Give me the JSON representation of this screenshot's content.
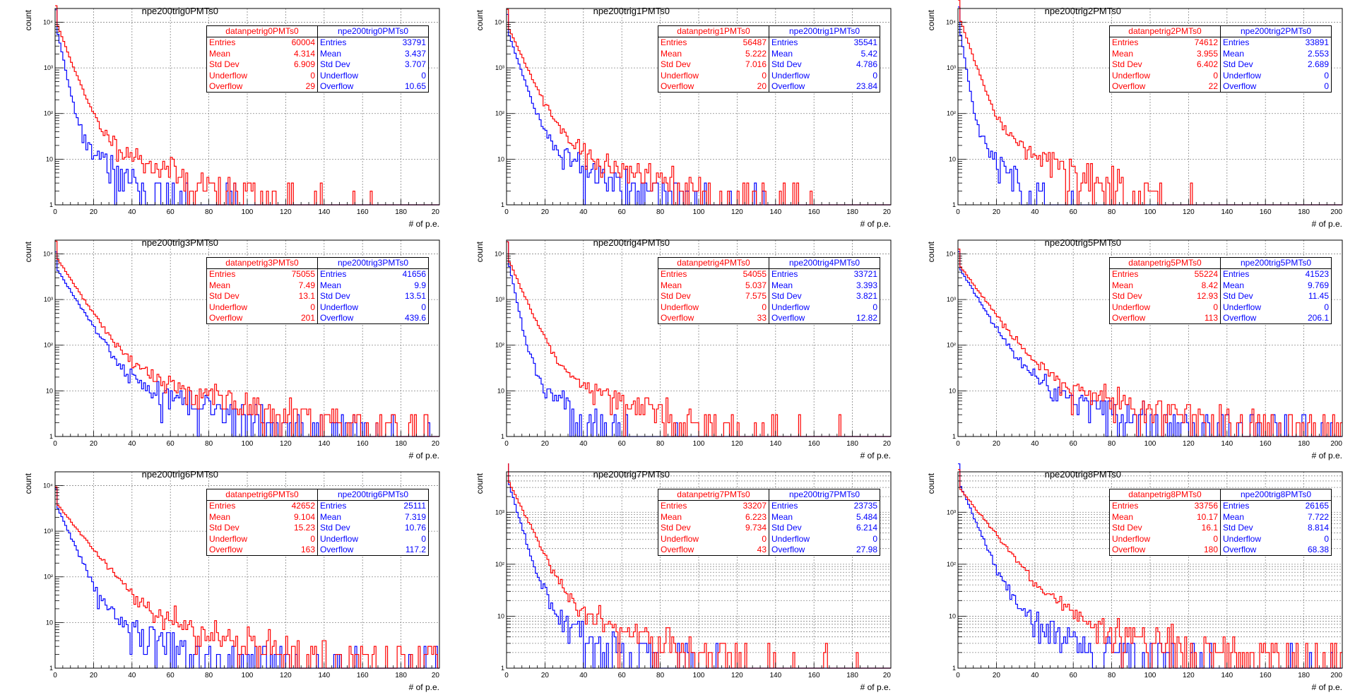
{
  "style": {
    "data_color": "#ff0000",
    "mc_color": "#0000ff"
  },
  "chart_data": [
    {
      "type": "histogram",
      "title": "npe200trig0PMTs0",
      "xlabel": "# of p.e.",
      "ylabel": "count",
      "xlim": [
        0,
        200
      ],
      "ylog": true,
      "ylim": [
        1,
        20000
      ],
      "grid": true,
      "xticks": [
        "0",
        "20",
        "40",
        "60",
        "80",
        "100",
        "120",
        "140",
        "160",
        "180",
        "20"
      ],
      "yticks": [
        "1",
        "10",
        "10²",
        "10³",
        "10⁴"
      ],
      "stats": [
        {
          "name": "datanpetrig0PMTs0",
          "color": "red",
          "Entries": "60004",
          "Mean": "4.314",
          "Std Dev": "6.909",
          "Underflow": "0",
          "Overflow": "29"
        },
        {
          "name": "npe200trig0PMTs0",
          "color": "blue",
          "Entries": "33791",
          "Mean": "3.437",
          "Std Dev": "3.707",
          "Underflow": "0",
          "Overflow": "10.65"
        }
      ]
    },
    {
      "type": "histogram",
      "title": "npe200trig1PMTs0",
      "xlabel": "# of p.e.",
      "ylabel": "count",
      "xlim": [
        0,
        200
      ],
      "ylog": true,
      "ylim": [
        1,
        20000
      ],
      "grid": true,
      "xticks": [
        "0",
        "20",
        "40",
        "60",
        "80",
        "100",
        "120",
        "140",
        "160",
        "180",
        "20"
      ],
      "yticks": [
        "1",
        "10",
        "10²",
        "10³",
        "10⁴"
      ],
      "stats": [
        {
          "name": "datanpetrig1PMTs0",
          "color": "red",
          "Entries": "56487",
          "Mean": "5.222",
          "Std Dev": "7.016",
          "Underflow": "0",
          "Overflow": "20"
        },
        {
          "name": "npe200trig1PMTs0",
          "color": "blue",
          "Entries": "35541",
          "Mean": "5.42",
          "Std Dev": "4.786",
          "Underflow": "0",
          "Overflow": "23.84"
        }
      ]
    },
    {
      "type": "histogram",
      "title": "npe200trig2PMTs0",
      "xlabel": "# of p.e.",
      "ylabel": "count",
      "xlim": [
        0,
        200
      ],
      "ylog": true,
      "ylim": [
        1,
        20000
      ],
      "grid": true,
      "xticks": [
        "0",
        "20",
        "40",
        "60",
        "80",
        "100",
        "120",
        "140",
        "160",
        "180",
        "200"
      ],
      "yticks": [
        "1",
        "10",
        "10²",
        "10³",
        "10⁴"
      ],
      "stats": [
        {
          "name": "datanpetrig2PMTs0",
          "color": "red",
          "Entries": "74612",
          "Mean": "3.955",
          "Std Dev": "6.402",
          "Underflow": "0",
          "Overflow": "22"
        },
        {
          "name": "npe200trig2PMTs0",
          "color": "blue",
          "Entries": "33891",
          "Mean": "2.553",
          "Std Dev": "2.689",
          "Underflow": "0",
          "Overflow": "0"
        }
      ]
    },
    {
      "type": "histogram",
      "title": "npe200trig3PMTs0",
      "xlabel": "# of p.e.",
      "ylabel": "count",
      "xlim": [
        0,
        200
      ],
      "ylog": true,
      "ylim": [
        1,
        20000
      ],
      "grid": true,
      "xticks": [
        "0",
        "20",
        "40",
        "60",
        "80",
        "100",
        "120",
        "140",
        "160",
        "180",
        "20"
      ],
      "yticks": [
        "1",
        "10",
        "10²",
        "10³",
        "10⁴"
      ],
      "stats": [
        {
          "name": "datanpetrig3PMTs0",
          "color": "red",
          "Entries": "75055",
          "Mean": "7.49",
          "Std Dev": "13.1",
          "Underflow": "0",
          "Overflow": "201"
        },
        {
          "name": "npe200trig3PMTs0",
          "color": "blue",
          "Entries": "41656",
          "Mean": "9.9",
          "Std Dev": "13.51",
          "Underflow": "0",
          "Overflow": "439.6"
        }
      ]
    },
    {
      "type": "histogram",
      "title": "npe200trig4PMTs0",
      "xlabel": "# of p.e.",
      "ylabel": "count",
      "xlim": [
        0,
        200
      ],
      "ylog": true,
      "ylim": [
        1,
        20000
      ],
      "grid": true,
      "xticks": [
        "0",
        "20",
        "40",
        "60",
        "80",
        "100",
        "120",
        "140",
        "160",
        "180",
        "20"
      ],
      "yticks": [
        "1",
        "10",
        "10²",
        "10³",
        "10⁴"
      ],
      "stats": [
        {
          "name": "datanpetrig4PMTs0",
          "color": "red",
          "Entries": "54055",
          "Mean": "5.037",
          "Std Dev": "7.575",
          "Underflow": "0",
          "Overflow": "33"
        },
        {
          "name": "npe200trig4PMTs0",
          "color": "blue",
          "Entries": "33721",
          "Mean": "3.393",
          "Std Dev": "3.821",
          "Underflow": "0",
          "Overflow": "12.82"
        }
      ]
    },
    {
      "type": "histogram",
      "title": "npe200trig5PMTs0",
      "xlabel": "# of p.e.",
      "ylabel": "count",
      "xlim": [
        0,
        200
      ],
      "ylog": true,
      "ylim": [
        1,
        20000
      ],
      "grid": true,
      "xticks": [
        "0",
        "20",
        "40",
        "60",
        "80",
        "100",
        "120",
        "140",
        "160",
        "180",
        "200"
      ],
      "yticks": [
        "1",
        "10",
        "10²",
        "10³",
        "10⁴"
      ],
      "stats": [
        {
          "name": "datanpetrig5PMTs0",
          "color": "red",
          "Entries": "55224",
          "Mean": "8.42",
          "Std Dev": "12.93",
          "Underflow": "0",
          "Overflow": "113"
        },
        {
          "name": "npe200trig5PMTs0",
          "color": "blue",
          "Entries": "41523",
          "Mean": "9.769",
          "Std Dev": "11.45",
          "Underflow": "0",
          "Overflow": "206.1"
        }
      ]
    },
    {
      "type": "histogram",
      "title": "npe200trig6PMTs0",
      "xlabel": "# of p.e.",
      "ylabel": "count",
      "xlim": [
        0,
        200
      ],
      "ylog": true,
      "ylim": [
        1,
        20000
      ],
      "grid": true,
      "xticks": [
        "0",
        "20",
        "40",
        "60",
        "80",
        "100",
        "120",
        "140",
        "160",
        "180",
        "20"
      ],
      "yticks": [
        "1",
        "10",
        "10²",
        "10³",
        "10⁴"
      ],
      "stats": [
        {
          "name": "datanpetrig6PMTs0",
          "color": "red",
          "Entries": "42652",
          "Mean": "9.104",
          "Std Dev": "15.23",
          "Underflow": "0",
          "Overflow": "163"
        },
        {
          "name": "npe200trig6PMTs0",
          "color": "blue",
          "Entries": "25111",
          "Mean": "7.319",
          "Std Dev": "10.76",
          "Underflow": "0",
          "Overflow": "117.2"
        }
      ]
    },
    {
      "type": "histogram",
      "title": "npe200trig7PMTs0",
      "xlabel": "# of p.e.",
      "ylabel": "count",
      "xlim": [
        0,
        200
      ],
      "ylog": true,
      "ylim": [
        1,
        6000
      ],
      "grid": true,
      "xticks": [
        "0",
        "20",
        "40",
        "60",
        "80",
        "100",
        "120",
        "140",
        "160",
        "180",
        "20"
      ],
      "yticks": [
        "1",
        "10",
        "10²",
        "10³"
      ],
      "stats": [
        {
          "name": "datanpetrig7PMTs0",
          "color": "red",
          "Entries": "33207",
          "Mean": "6.223",
          "Std Dev": "9.734",
          "Underflow": "0",
          "Overflow": "43"
        },
        {
          "name": "npe200trig7PMTs0",
          "color": "blue",
          "Entries": "23735",
          "Mean": "5.484",
          "Std Dev": "6.214",
          "Underflow": "0",
          "Overflow": "27.98"
        }
      ]
    },
    {
      "type": "histogram",
      "title": "npe200trig8PMTs0",
      "xlabel": "# of p.e.",
      "ylabel": "count",
      "xlim": [
        0,
        200
      ],
      "ylog": true,
      "ylim": [
        1,
        6000
      ],
      "grid": true,
      "xticks": [
        "0",
        "20",
        "40",
        "60",
        "80",
        "100",
        "120",
        "140",
        "160",
        "180",
        "200"
      ],
      "yticks": [
        "1",
        "10",
        "10²",
        "10³"
      ],
      "stats": [
        {
          "name": "datanpetrig8PMTs0",
          "color": "red",
          "Entries": "33756",
          "Mean": "10.17",
          "Std Dev": "16.1",
          "Underflow": "0",
          "Overflow": "180"
        },
        {
          "name": "npe200trig8PMTs0",
          "color": "blue",
          "Entries": "26165",
          "Mean": "7.722",
          "Std Dev": "8.814",
          "Underflow": "0",
          "Overflow": "68.38"
        }
      ]
    }
  ]
}
